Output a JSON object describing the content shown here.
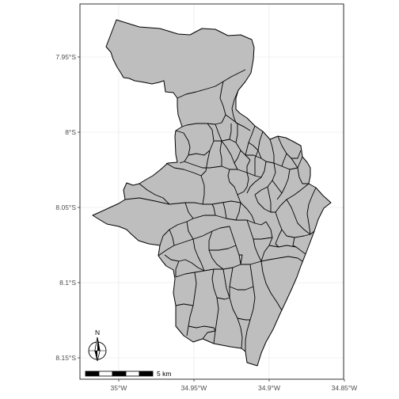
{
  "map": {
    "type": "choropleth-boundaries",
    "region_fill": "#bebebe",
    "region_stroke": "#000000",
    "panel_background": "#ffffff",
    "grid_color": "#ebebeb",
    "frame_color": "#333333",
    "x_axis": {
      "ticks": [
        {
          "value": -35.0,
          "label": "35°W"
        },
        {
          "value": -34.95,
          "label": "34.95°W"
        },
        {
          "value": -34.9,
          "label": "34.9°W"
        },
        {
          "value": -34.85,
          "label": "34.85°W"
        }
      ]
    },
    "y_axis": {
      "ticks": [
        {
          "value": -7.95,
          "label": "7.95°S"
        },
        {
          "value": -8.0,
          "label": "8°S"
        },
        {
          "value": -8.05,
          "label": "8.05°S"
        },
        {
          "value": -8.1,
          "label": "8.1°S"
        },
        {
          "value": -8.15,
          "label": "8.15°S"
        }
      ]
    },
    "north_arrow": {
      "label": "N",
      "icon": "north-arrow-icon"
    },
    "scale_bar": {
      "label": "5 km",
      "segments": 5
    }
  }
}
